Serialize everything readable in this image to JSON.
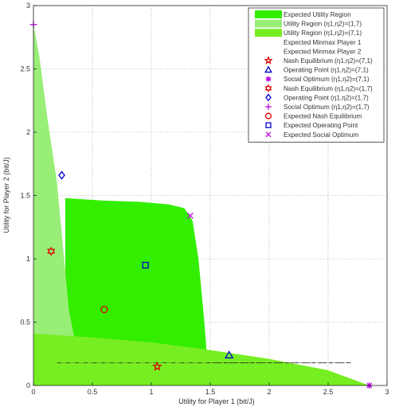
{
  "chart_data": {
    "type": "scatter",
    "title": "",
    "xlabel": "Utility for Player 1 (bit/J)",
    "ylabel": "Utility for Player 2 (bit/J)",
    "xlim": [
      0,
      3
    ],
    "ylim": [
      0,
      3
    ],
    "x_ticks": [
      0,
      0.5,
      1,
      1.5,
      2,
      2.5,
      3
    ],
    "y_ticks": [
      0,
      0.5,
      1,
      1.5,
      2,
      2.5,
      3
    ],
    "x_tick_labels": [
      "0",
      "0.5",
      "1",
      "1.5",
      "2",
      "2.5",
      "3"
    ],
    "y_tick_labels": [
      "0",
      "0.5",
      "1",
      "1.5",
      "2",
      "2.5",
      "3"
    ],
    "grid": true,
    "legend_position": "top-right",
    "colors": {
      "expected_region": "#33ee00",
      "region_17": "#99ee77",
      "region_71": "#77ee22",
      "red": "#dd0000",
      "blue": "#0000cc",
      "purple": "#bb00dd",
      "dash": "#222222"
    },
    "regions": [
      {
        "name": "Expected Utility Region",
        "boundary": [
          [
            0.27,
            1.48
          ],
          [
            0.6,
            1.46
          ],
          [
            0.9,
            1.45
          ],
          [
            1.15,
            1.43
          ],
          [
            1.28,
            1.4
          ],
          [
            1.35,
            1.3
          ],
          [
            1.4,
            1.0
          ],
          [
            1.45,
            0.5
          ],
          [
            1.47,
            0.25
          ],
          [
            1.47,
            0.2
          ],
          [
            0.27,
            0.2
          ]
        ]
      },
      {
        "name": "Utility Region (η1,η2)=(1,7)",
        "boundary": [
          [
            0,
            2.85
          ],
          [
            0.05,
            2.6
          ],
          [
            0.12,
            2.1
          ],
          [
            0.2,
            1.6
          ],
          [
            0.26,
            1.0
          ],
          [
            0.3,
            0.6
          ],
          [
            0.35,
            0.36
          ],
          [
            0,
            0.36
          ]
        ]
      },
      {
        "name": "Utility Region (η1,η2)=(7,1)",
        "boundary": [
          [
            0,
            0.41
          ],
          [
            0.5,
            0.38
          ],
          [
            1.0,
            0.34
          ],
          [
            1.5,
            0.28
          ],
          [
            2.0,
            0.21
          ],
          [
            2.5,
            0.12
          ],
          [
            2.85,
            0
          ],
          [
            0,
            0
          ]
        ]
      }
    ],
    "minmax_lines": [
      {
        "name": "Expected Minmax Player 1",
        "y": 0.18,
        "x_range": [
          0.2,
          2.7
        ],
        "style": "dashdot"
      },
      {
        "name": "Expected Minmax Player 2",
        "y": 0.18,
        "x_range": [
          1.47,
          2.7
        ],
        "style": "dashed"
      }
    ],
    "series": [
      {
        "name": "Nash Equilibrium (η1,η2)=(7,1)",
        "marker": "pentagram",
        "color": "#dd0000",
        "points": [
          [
            1.05,
            0.15
          ]
        ]
      },
      {
        "name": "Operating Point (η1,η2)=(7,1)",
        "marker": "triangle",
        "color": "#0000cc",
        "points": [
          [
            1.66,
            0.24
          ]
        ]
      },
      {
        "name": "Social Optimum (η1,η2)=(7,1)",
        "marker": "asterisk",
        "color": "#bb00dd",
        "points": [
          [
            2.85,
            0.0
          ]
        ]
      },
      {
        "name": "Nash Equilibrium (η1,η2)=(1,7)",
        "marker": "hexagram",
        "color": "#dd0000",
        "points": [
          [
            0.15,
            1.06
          ]
        ]
      },
      {
        "name": "Operating Point (η1,η2)=(1,7)",
        "marker": "diamond",
        "color": "#0000cc",
        "points": [
          [
            0.24,
            1.66
          ]
        ]
      },
      {
        "name": "Social Optimum (η1,η2)=(1,7)",
        "marker": "plus",
        "color": "#bb00dd",
        "points": [
          [
            0.0,
            2.85
          ]
        ]
      },
      {
        "name": "Expected Nash Equilibrium",
        "marker": "circle",
        "color": "#dd0000",
        "points": [
          [
            0.6,
            0.6
          ]
        ]
      },
      {
        "name": "Expected Operating Point",
        "marker": "square",
        "color": "#0000cc",
        "points": [
          [
            0.95,
            0.95
          ]
        ]
      },
      {
        "name": "Expected Social Optimum",
        "marker": "x",
        "color": "#bb00dd",
        "points": [
          [
            1.33,
            1.34
          ]
        ]
      }
    ],
    "legend": [
      {
        "label": "Expected Utility Region",
        "kind": "patch",
        "color": "#33ee00"
      },
      {
        "label": "Utility Region (η1,η2)=(1,7)",
        "kind": "patch",
        "color": "#99ee77"
      },
      {
        "label": "Utility Region (η1,η2)=(7,1)",
        "kind": "patch",
        "color": "#77ee22"
      },
      {
        "label": "Expected Minmax Player 1",
        "kind": "line"
      },
      {
        "label": "Expected Minmax Player 2",
        "kind": "line"
      },
      {
        "label": "Nash Equilibrium (η1,η2)=(7,1)",
        "kind": "marker",
        "marker": "pentagram",
        "color": "#dd0000"
      },
      {
        "label": "Operating Point (η1,η2)=(7,1)",
        "kind": "marker",
        "marker": "triangle",
        "color": "#0000cc"
      },
      {
        "label": "Social Optimum (η1,η2)=(7,1)",
        "kind": "marker",
        "marker": "asterisk",
        "color": "#bb00dd"
      },
      {
        "label": "Nash Equilibrium (η1,η2)=(1,7)",
        "kind": "marker",
        "marker": "hexagram",
        "color": "#dd0000"
      },
      {
        "label": "Operating Point (η1,η2)=(1,7)",
        "kind": "marker",
        "marker": "diamond",
        "color": "#0000cc"
      },
      {
        "label": "Social Optimum (η1,η2)=(1,7)",
        "kind": "marker",
        "marker": "plus",
        "color": "#bb00dd"
      },
      {
        "label": "Expected Nash Equilibrium",
        "kind": "marker",
        "marker": "circle",
        "color": "#dd0000"
      },
      {
        "label": "Expected Operating Point",
        "kind": "marker",
        "marker": "square",
        "color": "#0000cc"
      },
      {
        "label": "Expected Social Optimum",
        "kind": "marker",
        "marker": "x",
        "color": "#bb00dd"
      }
    ]
  }
}
